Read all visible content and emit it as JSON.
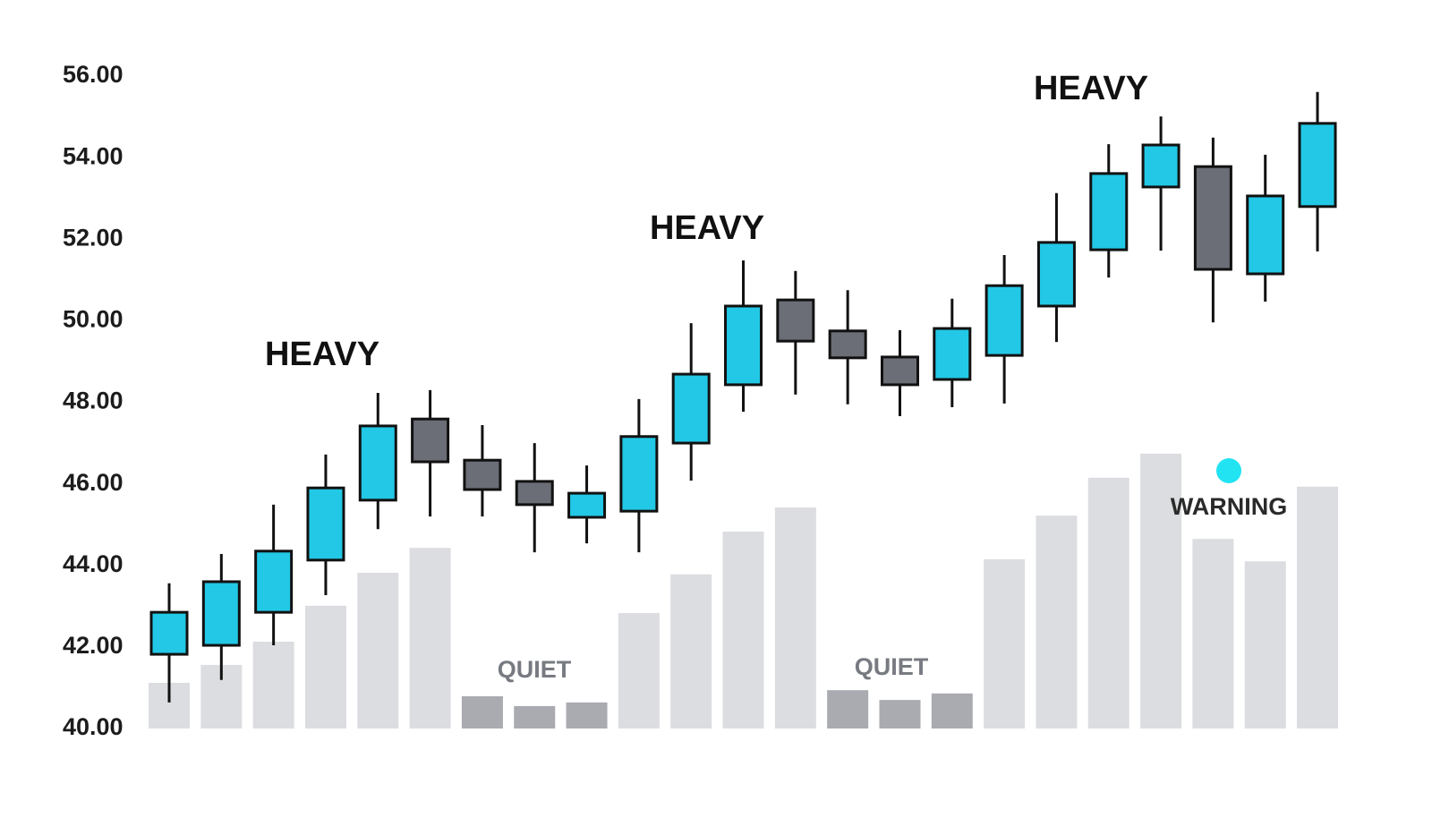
{
  "chart_data": {
    "type": "candlestick",
    "open": [
      41.82,
      42.04,
      42.85,
      44.13,
      45.6,
      47.59,
      46.58,
      46.06,
      45.18,
      45.33,
      47.0,
      48.43,
      50.51,
      49.75,
      49.11,
      48.56,
      49.15,
      50.36,
      51.74,
      53.28,
      53.78,
      51.15,
      52.8
    ],
    "high": [
      43.56,
      44.28,
      45.49,
      46.72,
      48.23,
      48.3,
      47.44,
      47.0,
      46.45,
      48.08,
      49.94,
      51.48,
      51.22,
      50.75,
      49.77,
      50.54,
      51.61,
      53.13,
      54.33,
      55.01,
      54.49,
      54.07,
      55.61
    ],
    "low": [
      40.64,
      41.19,
      42.04,
      43.27,
      44.89,
      45.2,
      45.2,
      44.32,
      44.54,
      44.32,
      46.08,
      47.77,
      48.19,
      47.95,
      47.66,
      47.88,
      47.97,
      49.48,
      51.06,
      51.72,
      49.96,
      50.47,
      51.7
    ],
    "close": [
      42.85,
      43.6,
      44.35,
      45.9,
      47.42,
      46.54,
      45.86,
      45.49,
      45.77,
      47.16,
      48.69,
      50.36,
      49.5,
      49.09,
      48.43,
      49.81,
      50.86,
      51.92,
      53.61,
      54.31,
      51.26,
      53.06,
      54.84
    ],
    "volume": [
      41.12,
      41.56,
      42.13,
      43.01,
      43.82,
      44.43,
      40.79,
      40.55,
      40.64,
      42.83,
      43.78,
      44.83,
      45.42,
      40.94,
      40.7,
      40.86,
      44.15,
      45.22,
      46.15,
      46.74,
      44.65,
      44.1,
      45.93
    ],
    "volume_colors": [
      "#dcdde0",
      "#dcdde0",
      "#dcdde0",
      "#dcdde0",
      "#dcdde0",
      "#dcdde0",
      "#a9abb0",
      "#a9abb0",
      "#a9abb0",
      "#dcdde0",
      "#dcdde0",
      "#dcdde0",
      "#dcdde0",
      "#a9abb0",
      "#a9abb0",
      "#a9abb0",
      "#dcdde0",
      "#dcdde0",
      "#dcdde0",
      "#dcdde0",
      "#dcdde0",
      "#dcdde0",
      "#dcdde0"
    ],
    "up_color": "#22c8e5",
    "down_color": "#6b6e76",
    "warning_color": "#22e3f2",
    "ylim": [
      40,
      56
    ],
    "yticks": [
      {
        "value": 40,
        "label": "40.00"
      },
      {
        "value": 42,
        "label": "42.00"
      },
      {
        "value": 44,
        "label": "44.00"
      },
      {
        "value": 46,
        "label": "46.00"
      },
      {
        "value": 48,
        "label": "48.00"
      },
      {
        "value": 50,
        "label": "50.00"
      },
      {
        "value": 52,
        "label": "52.00"
      },
      {
        "value": 54,
        "label": "54.00"
      },
      {
        "value": 56,
        "label": "56.00"
      }
    ],
    "annotations": [
      "HEAVY",
      "HEAVY",
      "HEAVY",
      "QUIET",
      "QUIET",
      "WARNING"
    ]
  }
}
